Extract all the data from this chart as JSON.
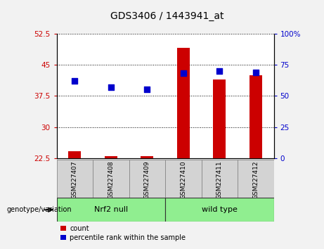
{
  "title": "GDS3406 / 1443941_at",
  "samples": [
    "GSM227407",
    "GSM227408",
    "GSM227409",
    "GSM227410",
    "GSM227411",
    "GSM227412"
  ],
  "count_values": [
    24.2,
    22.9,
    22.9,
    49.0,
    41.5,
    42.5
  ],
  "percentile_values": [
    62,
    57,
    55,
    68,
    70,
    69
  ],
  "left_ylim": [
    22.5,
    52.5
  ],
  "left_yticks": [
    22.5,
    30.0,
    37.5,
    45.0,
    52.5
  ],
  "left_yticklabels": [
    "22.5",
    "30",
    "37.5",
    "45",
    "52.5"
  ],
  "right_ylim": [
    0,
    100
  ],
  "right_yticks": [
    0,
    25,
    50,
    75,
    100
  ],
  "right_yticklabels": [
    "0",
    "25",
    "50",
    "75",
    "100%"
  ],
  "left_ytick_color": "#CC0000",
  "right_ytick_color": "#0000CC",
  "bar_color": "#CC0000",
  "dot_color": "#0000CC",
  "grid_color": "#000000",
  "group1_name": "Nrf2 null",
  "group2_name": "wild type",
  "genotype_label": "genotype/variation",
  "legend_count": "count",
  "legend_percentile": "percentile rank within the sample",
  "bar_width": 0.35,
  "dot_size": 30,
  "plot_bg": "#FFFFFF",
  "outer_bg": "#F2F2F2",
  "label_bg": "#D3D3D3",
  "group_bg": "#90EE90"
}
